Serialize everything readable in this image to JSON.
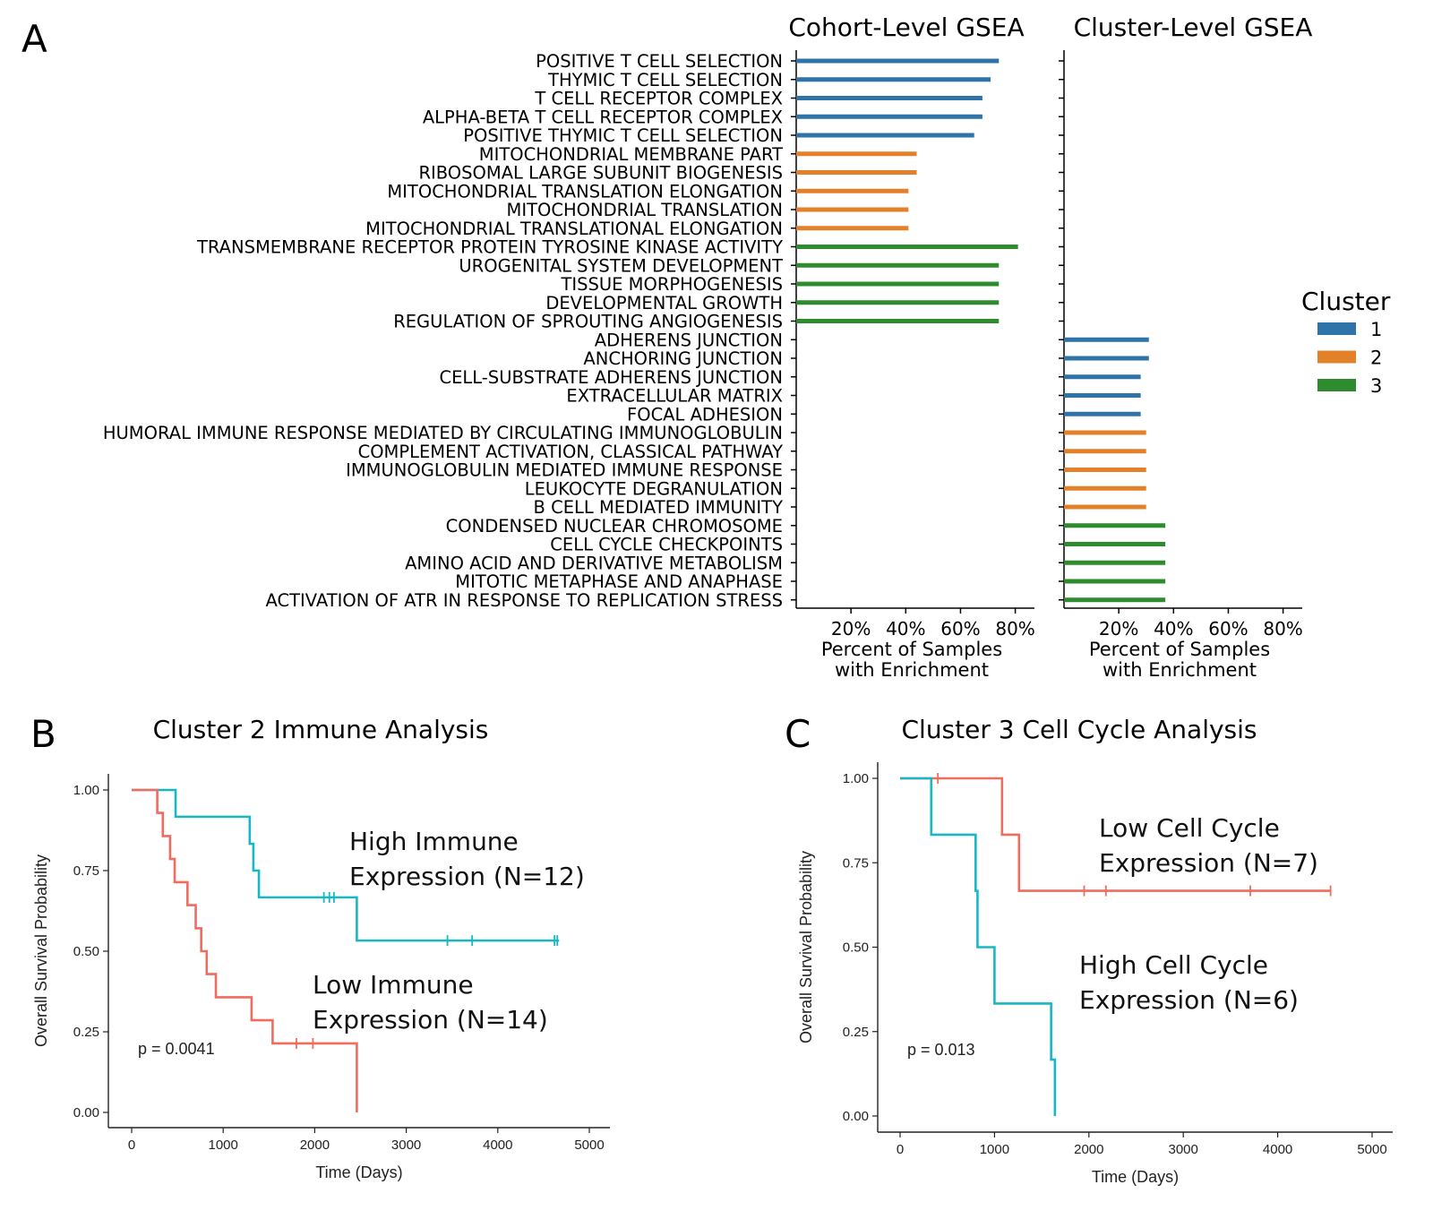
{
  "panels": {
    "A": "A",
    "B": "B",
    "C": "C"
  },
  "colors": {
    "cluster1": "#2f74a8",
    "cluster2": "#e3812b",
    "cluster3": "#2e8b2e",
    "km_high": "#17b8c4",
    "km_low": "#ef6c5e"
  },
  "chart_data": [
    {
      "type": "bar",
      "orientation": "horizontal",
      "title": "Cohort-Level GSEA",
      "xlabel": "Percent of Samples\nwith Enrichment",
      "xticks": [
        "20%",
        "40%",
        "60%",
        "80%"
      ],
      "xlim": [
        0,
        87
      ],
      "categories": [
        "POSITIVE T CELL SELECTION",
        "THYMIC T CELL SELECTION",
        "T CELL RECEPTOR COMPLEX",
        "ALPHA-BETA T CELL RECEPTOR COMPLEX",
        "POSITIVE THYMIC T CELL SELECTION",
        "MITOCHONDRIAL MEMBRANE PART",
        "RIBOSOMAL LARGE SUBUNIT BIOGENESIS",
        "MITOCHONDRIAL TRANSLATION ELONGATION",
        "MITOCHONDRIAL TRANSLATION",
        "MITOCHONDRIAL TRANSLATIONAL ELONGATION",
        "TRANSMEMBRANE RECEPTOR PROTEIN TYROSINE KINASE ACTIVITY",
        "UROGENITAL SYSTEM DEVELOPMENT",
        "TISSUE MORPHOGENESIS",
        "DEVELOPMENTAL GROWTH",
        "REGULATION OF SPROUTING ANGIOGENESIS",
        "ADHERENS JUNCTION",
        "ANCHORING JUNCTION",
        "CELL-SUBSTRATE ADHERENS JUNCTION",
        "EXTRACELLULAR MATRIX",
        "FOCAL ADHESION",
        "HUMORAL IMMUNE RESPONSE MEDIATED BY CIRCULATING IMMUNOGLOBULIN",
        "COMPLEMENT ACTIVATION, CLASSICAL PATHWAY",
        "IMMUNOGLOBULIN MEDIATED IMMUNE RESPONSE",
        "LEUKOCYTE DEGRANULATION",
        "B CELL MEDIATED IMMUNITY",
        "CONDENSED NUCLEAR CHROMOSOME",
        "CELL CYCLE CHECKPOINTS",
        "AMINO ACID AND DERIVATIVE METABOLISM",
        "MITOTIC METAPHASE AND ANAPHASE",
        "ACTIVATION OF ATR IN RESPONSE TO REPLICATION STRESS"
      ],
      "values": [
        74,
        71,
        68,
        68,
        65,
        44,
        44,
        41,
        41,
        41,
        81,
        74,
        74,
        74,
        74,
        null,
        null,
        null,
        null,
        null,
        null,
        null,
        null,
        null,
        null,
        null,
        null,
        null,
        null,
        null
      ],
      "clusters": [
        1,
        1,
        1,
        1,
        1,
        2,
        2,
        2,
        2,
        2,
        3,
        3,
        3,
        3,
        3,
        1,
        1,
        1,
        1,
        1,
        2,
        2,
        2,
        2,
        2,
        3,
        3,
        3,
        3,
        3
      ]
    },
    {
      "type": "bar",
      "orientation": "horizontal",
      "title": "Cluster-Level GSEA",
      "xlabel": "Percent of Samples\nwith Enrichment",
      "xticks": [
        "20%",
        "40%",
        "60%",
        "80%"
      ],
      "xlim": [
        0,
        87
      ],
      "values": [
        null,
        null,
        null,
        null,
        null,
        null,
        null,
        null,
        null,
        null,
        null,
        null,
        null,
        null,
        null,
        31,
        31,
        28,
        28,
        28,
        30,
        30,
        30,
        30,
        30,
        37,
        37,
        37,
        37,
        37
      ],
      "legend": {
        "title": "Cluster",
        "entries": [
          "1",
          "2",
          "3"
        ],
        "position": "right"
      }
    },
    {
      "type": "line",
      "subtype": "kaplan-meier",
      "title": "Cluster 2 Immune Analysis",
      "xlabel": "Time (Days)",
      "ylabel": "Overall Survival Probability",
      "xlim": [
        0,
        5000
      ],
      "ylim": [
        0,
        1
      ],
      "xticks": [
        "0",
        "1000",
        "2000",
        "3000",
        "4000",
        "5000"
      ],
      "yticks": [
        "0.00",
        "0.25",
        "0.50",
        "0.75",
        "1.00"
      ],
      "pvalue": "p = 0.0041",
      "series": [
        {
          "name": "High Immune\nExpression (N=12)",
          "color": "km_high",
          "steps": [
            [
              0,
              1.0
            ],
            [
              480,
              0.917
            ],
            [
              1290,
              0.833
            ],
            [
              1330,
              0.75
            ],
            [
              1390,
              0.667
            ],
            [
              2460,
              0.533
            ],
            [
              4670,
              0.533
            ]
          ],
          "censor": [
            2100,
            2160,
            2210,
            3450,
            3720,
            4620,
            4650
          ]
        },
        {
          "name": "Low Immune\nExpression (N=14)",
          "color": "km_low",
          "steps": [
            [
              0,
              1.0
            ],
            [
              280,
              0.929
            ],
            [
              340,
              0.857
            ],
            [
              420,
              0.786
            ],
            [
              470,
              0.714
            ],
            [
              610,
              0.643
            ],
            [
              700,
              0.571
            ],
            [
              760,
              0.5
            ],
            [
              820,
              0.429
            ],
            [
              920,
              0.357
            ],
            [
              1310,
              0.286
            ],
            [
              1540,
              0.214
            ],
            [
              2460,
              0.0
            ]
          ],
          "censor": [
            1800,
            1980
          ]
        }
      ]
    },
    {
      "type": "line",
      "subtype": "kaplan-meier",
      "title": "Cluster 3  Cell Cycle Analysis",
      "xlabel": "Time (Days)",
      "ylabel": "Overall Survival Probability",
      "xlim": [
        0,
        5000
      ],
      "ylim": [
        0,
        1
      ],
      "xticks": [
        "0",
        "1000",
        "2000",
        "3000",
        "4000",
        "5000"
      ],
      "yticks": [
        "0.00",
        "0.25",
        "0.50",
        "0.75",
        "1.00"
      ],
      "pvalue": "p = 0.013",
      "series": [
        {
          "name": "Low Cell Cycle\nExpression (N=7)",
          "color": "km_low",
          "steps": [
            [
              0,
              1.0
            ],
            [
              1080,
              0.833
            ],
            [
              1260,
              0.667
            ],
            [
              4560,
              0.667
            ]
          ],
          "censor": [
            400,
            1950,
            2180,
            3710,
            4560
          ]
        },
        {
          "name": "High Cell Cycle\nExpression (N=6)",
          "color": "km_high",
          "steps": [
            [
              0,
              1.0
            ],
            [
              330,
              0.833
            ],
            [
              800,
              0.667
            ],
            [
              820,
              0.5
            ],
            [
              1000,
              0.333
            ],
            [
              1600,
              0.167
            ],
            [
              1640,
              0.0
            ]
          ],
          "censor": []
        }
      ]
    }
  ]
}
